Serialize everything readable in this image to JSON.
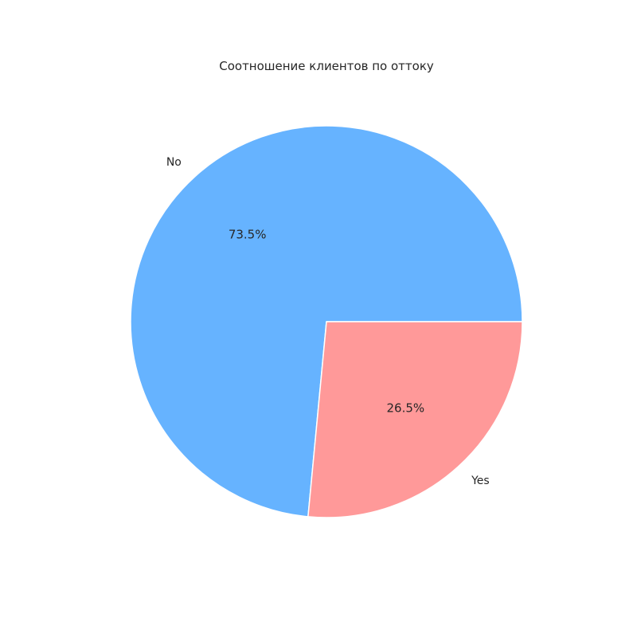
{
  "chart_data": {
    "type": "pie",
    "title": "Соотношение клиентов по оттоку",
    "slices": [
      {
        "label": "No",
        "value": 73.5,
        "pct_label": "73.5%",
        "color": "#66b3ff"
      },
      {
        "label": "Yes",
        "value": 26.5,
        "pct_label": "26.5%",
        "color": "#ff9999"
      }
    ],
    "start_angle_deg": 0,
    "direction": "counterclockwise",
    "edge_color": "#ffffff"
  }
}
